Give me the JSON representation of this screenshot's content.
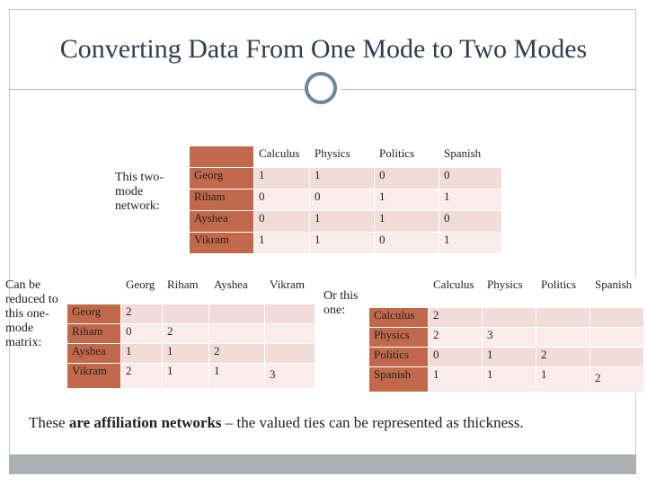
{
  "title": "Converting Data From One Mode to Two Modes",
  "two_mode": {
    "label": "This two-mode network:",
    "columns": [
      "Calculus",
      "Physics",
      "Politics",
      "Spanish"
    ],
    "rows": [
      {
        "name": "Georg",
        "values": [
          "1",
          "1",
          "0",
          "0"
        ]
      },
      {
        "name": "Riham",
        "values": [
          "0",
          "0",
          "1",
          "1"
        ]
      },
      {
        "name": "Ayshea",
        "values": [
          "0",
          "1",
          "1",
          "0"
        ]
      },
      {
        "name": "Vikram",
        "values": [
          "1",
          "1",
          "0",
          "1"
        ]
      }
    ]
  },
  "one_mode_people": {
    "label": "Can be reduced to this one-mode matrix:",
    "columns": [
      "Georg",
      "Riham",
      "Ayshea",
      "Vikram"
    ],
    "rows": [
      {
        "name": "Georg",
        "values": [
          "2",
          "",
          "",
          ""
        ]
      },
      {
        "name": "Riham",
        "values": [
          "0",
          "2",
          "",
          ""
        ]
      },
      {
        "name": "Ayshea",
        "values": [
          "1",
          "1",
          "2",
          ""
        ]
      },
      {
        "name": "Vikram",
        "values": [
          "2",
          "1",
          "1",
          "3"
        ]
      }
    ]
  },
  "one_mode_subjects": {
    "label": "Or this one:",
    "columns": [
      "Calculus",
      "Physics",
      "Politics",
      "Spanish"
    ],
    "rows": [
      {
        "name": "Calculus",
        "values": [
          "2",
          "",
          "",
          ""
        ]
      },
      {
        "name": "Physics",
        "values": [
          "2",
          "3",
          "",
          ""
        ]
      },
      {
        "name": "Politics",
        "values": [
          "0",
          "1",
          "2",
          ""
        ]
      },
      {
        "name": "Spanish",
        "values": [
          "1",
          "1",
          "1",
          "2"
        ]
      }
    ]
  },
  "footer": {
    "pre": "These ",
    "bold": "are affiliation networks",
    "post": " – the valued ties can be represented as thickness."
  },
  "colors": {
    "header": "#c2694b",
    "cell_light": "#f2dcda",
    "cell_lighter": "#f9eceb",
    "accent": "#6d8794"
  }
}
